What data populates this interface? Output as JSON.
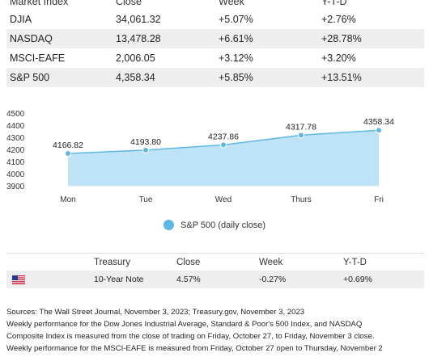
{
  "market_table": {
    "headers": [
      "Market Index",
      "Close",
      "Week",
      "Y-T-D"
    ],
    "rows": [
      [
        "DJIA",
        "34,061.32",
        "+5.07%",
        "+2.76%"
      ],
      [
        "NASDAQ",
        "13,478.28",
        "+6.61%",
        "+28.78%"
      ],
      [
        "MSCI-EAFE",
        "2,006.05",
        "+3.12%",
        "+3.20%"
      ],
      [
        "S&P 500",
        "4,358.34",
        "+5.85%",
        "+13.51%"
      ]
    ]
  },
  "chart_data": {
    "type": "area",
    "categories": [
      "Mon",
      "Tue",
      "Wed",
      "Thurs",
      "Fri"
    ],
    "series": [
      {
        "name": "S&P 500 (daily close)",
        "values": [
          4166.82,
          4193.8,
          4237.86,
          4317.78,
          4358.34
        ]
      }
    ],
    "data_labels": [
      "4166.82",
      "4193.80",
      "4237.86",
      "4317.78",
      "4358.34"
    ],
    "yticks": [
      3900,
      4000,
      4100,
      4200,
      4300,
      4400,
      4500
    ],
    "ylim": [
      3900,
      4500
    ],
    "color": "#5eb8e6",
    "fill_color": "#bfe3f6",
    "legend_position": "bottom"
  },
  "legend": {
    "label": "S&P 500 (daily close)"
  },
  "treasury_table": {
    "headers": [
      "",
      "Treasury",
      "Close",
      "Week",
      "Y-T-D"
    ],
    "row": {
      "flag": "us-flag-icon",
      "name": "10-Year Note",
      "close": "4.57%",
      "week": "-0.27%",
      "ytd": "+0.69%"
    }
  },
  "sources": [
    "Sources: The Wall Street Journal, November 3, 2023; Treasury.gov, November 3, 2023",
    "Weekly performance for the Dow Jones Industrial Average, Standard & Poor's 500 Index, and NASDAQ",
    "Composite Index is measured from the close of trading on Friday, October 27, to Friday, November 3 close.",
    "Weekly performance for the MSCI-EAFE is measured from Friday, October 27 open to Thursday, November 2"
  ]
}
